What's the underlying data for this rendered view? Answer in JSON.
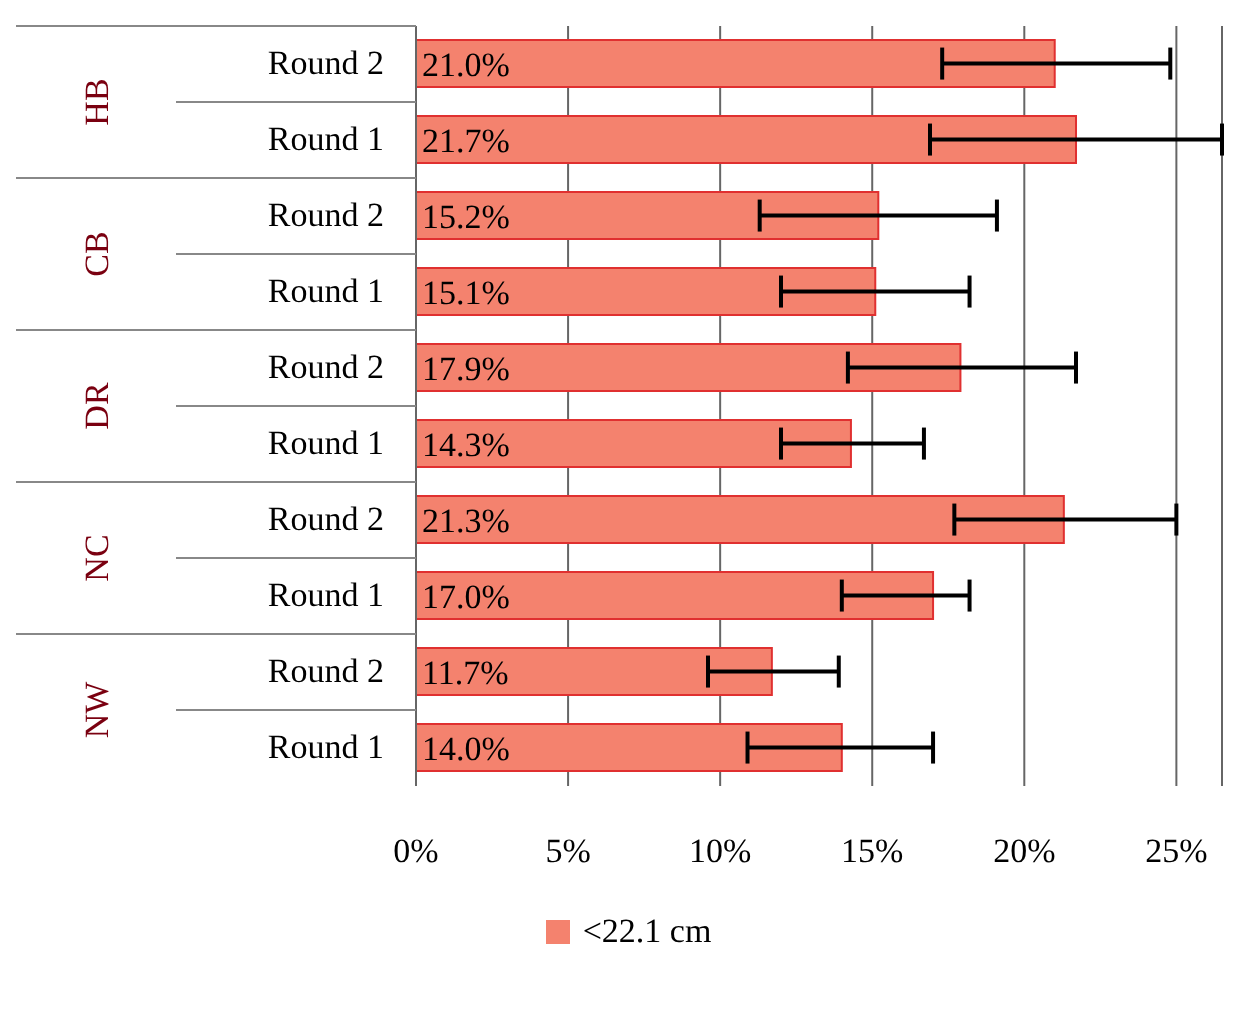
{
  "chart_data": {
    "type": "bar",
    "orientation": "horizontal",
    "categories": [
      "Round 2",
      "Round 1",
      "Round 2",
      "Round 1",
      "Round 2",
      "Round 1",
      "Round 2",
      "Round 1",
      "Round 2",
      "Round 1"
    ],
    "annotations": [
      "HB",
      "CB",
      "DR",
      "NC",
      "NW"
    ],
    "series": [
      {
        "name": "<22.1 cm",
        "color": "#f4826e",
        "values": [
          21.0,
          21.7,
          15.2,
          15.1,
          17.9,
          14.3,
          21.3,
          17.0,
          11.7,
          14.0
        ],
        "value_labels": [
          "21.0%",
          "21.7%",
          "15.2%",
          "15.1%",
          "17.9%",
          "14.3%",
          "21.3%",
          "17.0%",
          "11.7%",
          "14.0%"
        ],
        "errors": [
          [
            17.3,
            24.8
          ],
          [
            16.9,
            26.5
          ],
          [
            11.3,
            19.1
          ],
          [
            12.0,
            18.2
          ],
          [
            14.2,
            21.7
          ],
          [
            12.0,
            16.7
          ],
          [
            17.7,
            25.0
          ],
          [
            14.0,
            18.2
          ],
          [
            9.6,
            13.9
          ],
          [
            10.9,
            17.0
          ]
        ]
      }
    ],
    "xlim": [
      0,
      26.5
    ],
    "xticks": [
      {
        "value": 0,
        "label": "0%"
      },
      {
        "value": 5,
        "label": "5%"
      },
      {
        "value": 10,
        "label": "10%"
      },
      {
        "value": 15,
        "label": "15%"
      },
      {
        "value": 20,
        "label": "20%"
      },
      {
        "value": 25,
        "label": "25%"
      }
    ],
    "grid": "x",
    "legend": "bottom"
  }
}
